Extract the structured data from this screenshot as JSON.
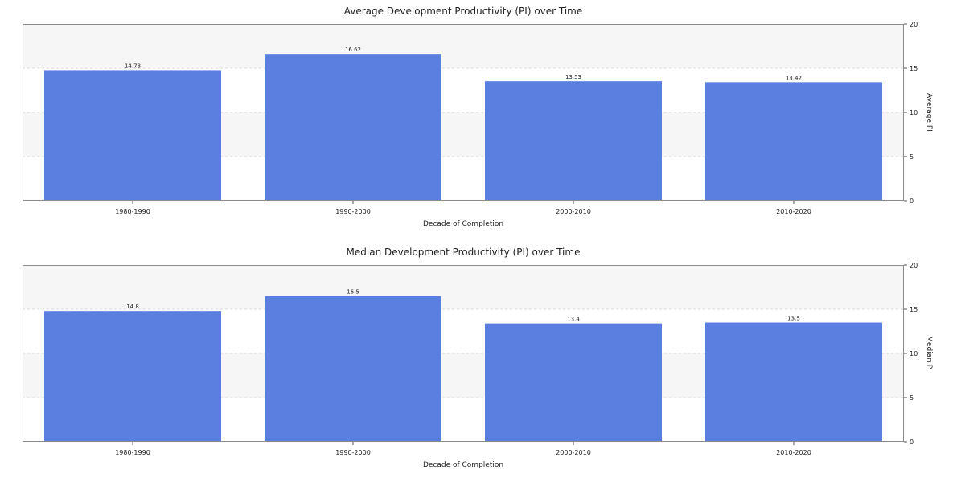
{
  "chart_data": [
    {
      "type": "bar",
      "title": "Average Development Productivity (PI) over Time",
      "xlabel": "Decade of Completion",
      "ylabel": "Average PI",
      "categories": [
        "1980-1990",
        "1990-2000",
        "2000-2010",
        "2010-2020"
      ],
      "values": [
        14.78,
        16.62,
        13.53,
        13.42
      ],
      "data_labels": [
        "14.78",
        "16.62",
        "13.53",
        "13.42"
      ],
      "ylim": [
        0,
        20
      ],
      "yticks": [
        0,
        5,
        10,
        15,
        20
      ],
      "y_axis_side": "right",
      "grid": "horizontal dashed with alternating bands",
      "bar_color": "#5b7fe1",
      "band_color": "#f6f6f6"
    },
    {
      "type": "bar",
      "title": "Median  Development Productivity (PI) over Time",
      "xlabel": "Decade of Completion",
      "ylabel": "Median PI",
      "categories": [
        "1980-1990",
        "1990-2000",
        "2000-2010",
        "2010-2020"
      ],
      "values": [
        14.8,
        16.5,
        13.4,
        13.5
      ],
      "data_labels": [
        "14.8",
        "16.5",
        "13.4",
        "13.5"
      ],
      "ylim": [
        0,
        20
      ],
      "yticks": [
        0,
        5,
        10,
        15,
        20
      ],
      "y_axis_side": "right",
      "grid": "horizontal dashed with alternating bands",
      "bar_color": "#5b7fe1",
      "band_color": "#f6f6f6"
    }
  ]
}
